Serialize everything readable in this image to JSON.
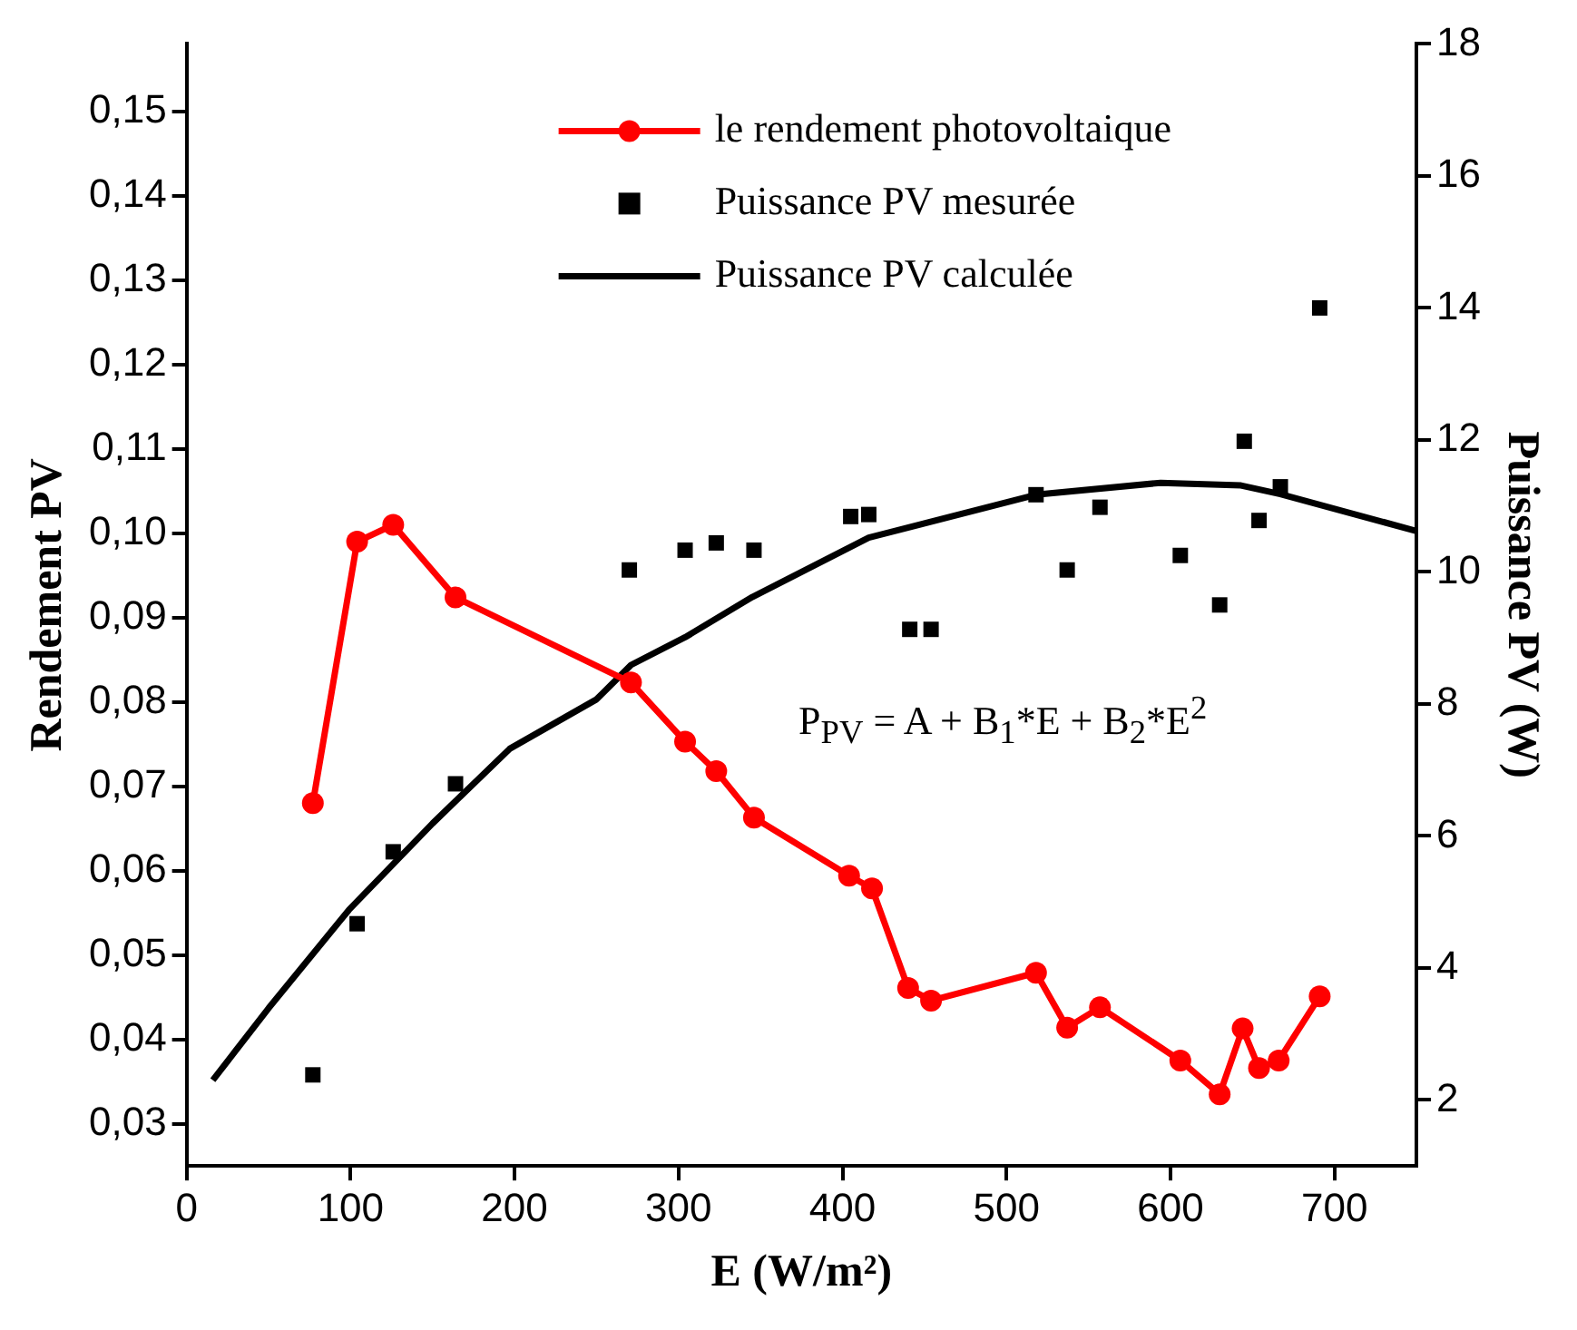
{
  "chart_data": {
    "type": "line",
    "xlabel": "E (W/m²)",
    "ylabel": "Rendement PV",
    "y2label": "Puissance PV (W)",
    "xlim": [
      0,
      750
    ],
    "xticks": [
      0,
      100,
      200,
      300,
      400,
      500,
      600,
      700
    ],
    "ylim": [
      0.025,
      0.158
    ],
    "yticks": [
      {
        "value": 0.03,
        "label": "0,03"
      },
      {
        "value": 0.04,
        "label": "0,04"
      },
      {
        "value": 0.05,
        "label": "0,05"
      },
      {
        "value": 0.06,
        "label": "0,06"
      },
      {
        "value": 0.07,
        "label": "0,07"
      },
      {
        "value": 0.08,
        "label": "0,08"
      },
      {
        "value": 0.09,
        "label": "0,09"
      },
      {
        "value": 0.1,
        "label": "0,10"
      },
      {
        "value": 0.11,
        "label": "0,11"
      },
      {
        "value": 0.12,
        "label": "0,12"
      },
      {
        "value": 0.13,
        "label": "0,13"
      },
      {
        "value": 0.14,
        "label": "0,14"
      },
      {
        "value": 0.15,
        "label": "0,15"
      }
    ],
    "y2lim": [
      1,
      18
    ],
    "y2ticks": [
      2,
      4,
      6,
      8,
      10,
      12,
      14,
      16,
      18
    ],
    "grid": false,
    "legend": "top right",
    "annotations": [
      "P$_{PV}$ = A + B$_{1}$*E + B$_{2}$*E$^{2}$"
    ],
    "series": [
      {
        "name": "le rendement photovoltaique",
        "type": "line",
        "color": "#ff0000",
        "marker": "circle",
        "axis": "y",
        "x": [
          77,
          104,
          126,
          164,
          271,
          304,
          323,
          346,
          404,
          418,
          440,
          454,
          518,
          537,
          557,
          606,
          630,
          644,
          654,
          666,
          691
        ],
        "values": [
          0.068,
          0.099,
          0.101,
          0.0924,
          0.0823,
          0.0753,
          0.0718,
          0.0663,
          0.0594,
          0.0579,
          0.0461,
          0.0446,
          0.0479,
          0.0414,
          0.0438,
          0.0375,
          0.0335,
          0.0413,
          0.0366,
          0.0375,
          0.0451
        ]
      },
      {
        "name": "Puissance PV mesurée",
        "type": "scatter",
        "color": "#000000",
        "marker": "square",
        "axis": "y2",
        "x": [
          77,
          104,
          126,
          164,
          270,
          304,
          323,
          346,
          405,
          416,
          441,
          454,
          518,
          537,
          557,
          606,
          630,
          645,
          654,
          667,
          691
        ],
        "values": [
          2.38,
          4.67,
          5.76,
          6.79,
          10.03,
          10.33,
          10.44,
          10.33,
          10.84,
          10.87,
          9.13,
          9.13,
          11.17,
          10.03,
          10.98,
          10.25,
          9.5,
          11.98,
          10.78,
          11.29,
          14.0
        ]
      },
      {
        "name": "Puissance PV calculée",
        "type": "line",
        "color": "#000000",
        "marker": "none",
        "axis": "y2",
        "x": [
          16,
          50,
          99,
          150,
          197,
          250,
          271,
          304,
          345,
          416,
          518,
          594,
          643,
          667,
          750
        ],
        "values": [
          2.3,
          3.39,
          4.88,
          6.19,
          7.32,
          8.07,
          8.59,
          9.01,
          9.62,
          10.52,
          11.17,
          11.35,
          11.31,
          11.18,
          10.62
        ]
      }
    ]
  }
}
